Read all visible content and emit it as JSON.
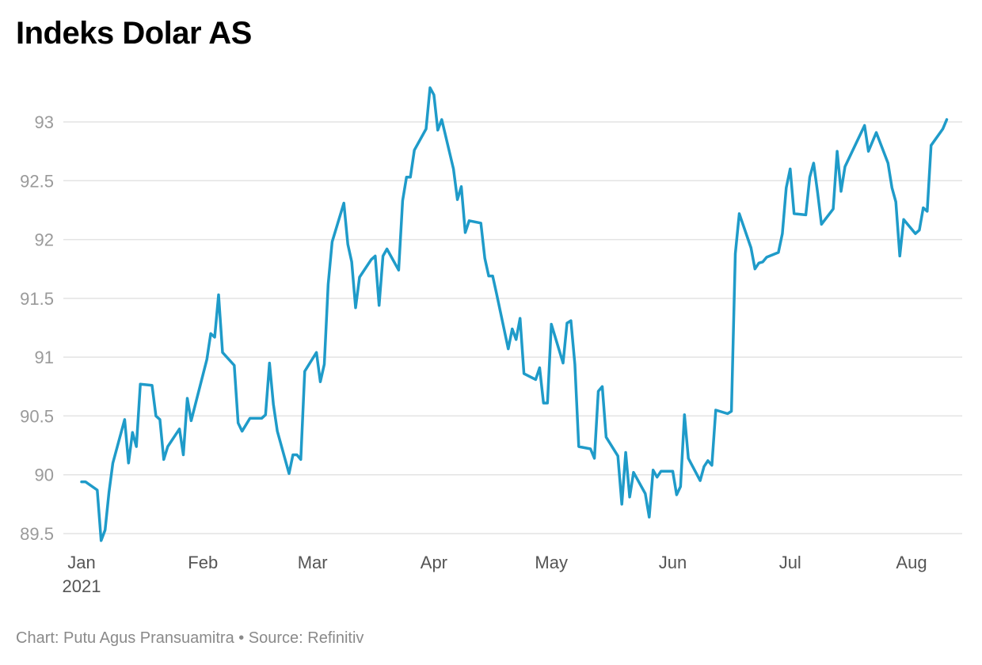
{
  "chart_data": {
    "type": "line",
    "title": "Indeks Dolar AS",
    "series": [
      {
        "name": "Indeks Dolar AS",
        "color": "#1f9bc9",
        "points": [
          [
            "2021-01-01",
            89.94
          ],
          [
            "2021-01-02",
            89.94
          ],
          [
            "2021-01-05",
            89.87
          ],
          [
            "2021-01-06",
            89.44
          ],
          [
            "2021-01-07",
            89.53
          ],
          [
            "2021-01-08",
            89.85
          ],
          [
            "2021-01-09",
            90.1
          ],
          [
            "2021-01-12",
            90.47
          ],
          [
            "2021-01-13",
            90.1
          ],
          [
            "2021-01-14",
            90.36
          ],
          [
            "2021-01-15",
            90.24
          ],
          [
            "2021-01-16",
            90.77
          ],
          [
            "2021-01-19",
            90.76
          ],
          [
            "2021-01-20",
            90.5
          ],
          [
            "2021-01-21",
            90.47
          ],
          [
            "2021-01-22",
            90.13
          ],
          [
            "2021-01-23",
            90.24
          ],
          [
            "2021-01-26",
            90.39
          ],
          [
            "2021-01-27",
            90.17
          ],
          [
            "2021-01-28",
            90.65
          ],
          [
            "2021-01-29",
            90.46
          ],
          [
            "2021-02-02",
            90.98
          ],
          [
            "2021-02-03",
            91.2
          ],
          [
            "2021-02-04",
            91.17
          ],
          [
            "2021-02-05",
            91.53
          ],
          [
            "2021-02-06",
            91.04
          ],
          [
            "2021-02-09",
            90.93
          ],
          [
            "2021-02-10",
            90.44
          ],
          [
            "2021-02-11",
            90.37
          ],
          [
            "2021-02-13",
            90.48
          ],
          [
            "2021-02-16",
            90.48
          ],
          [
            "2021-02-17",
            90.51
          ],
          [
            "2021-02-18",
            90.95
          ],
          [
            "2021-02-19",
            90.6
          ],
          [
            "2021-02-20",
            90.37
          ],
          [
            "2021-02-23",
            90.01
          ],
          [
            "2021-02-24",
            90.17
          ],
          [
            "2021-02-25",
            90.17
          ],
          [
            "2021-02-26",
            90.13
          ],
          [
            "2021-02-27",
            90.88
          ],
          [
            "2021-03-02",
            91.04
          ],
          [
            "2021-03-03",
            90.79
          ],
          [
            "2021-03-04",
            90.94
          ],
          [
            "2021-03-05",
            91.62
          ],
          [
            "2021-03-06",
            91.98
          ],
          [
            "2021-03-09",
            92.31
          ],
          [
            "2021-03-10",
            91.96
          ],
          [
            "2021-03-11",
            91.81
          ],
          [
            "2021-03-12",
            91.42
          ],
          [
            "2021-03-13",
            91.68
          ],
          [
            "2021-03-16",
            91.83
          ],
          [
            "2021-03-17",
            91.86
          ],
          [
            "2021-03-18",
            91.44
          ],
          [
            "2021-03-19",
            91.86
          ],
          [
            "2021-03-20",
            91.92
          ],
          [
            "2021-03-23",
            91.74
          ],
          [
            "2021-03-24",
            92.33
          ],
          [
            "2021-03-25",
            92.53
          ],
          [
            "2021-03-26",
            92.53
          ],
          [
            "2021-03-27",
            92.76
          ],
          [
            "2021-03-30",
            92.94
          ],
          [
            "2021-03-31",
            93.29
          ],
          [
            "2021-04-01",
            93.23
          ],
          [
            "2021-04-02",
            92.93
          ],
          [
            "2021-04-03",
            93.02
          ],
          [
            "2021-04-06",
            92.6
          ],
          [
            "2021-04-07",
            92.34
          ],
          [
            "2021-04-08",
            92.45
          ],
          [
            "2021-04-09",
            92.06
          ],
          [
            "2021-04-10",
            92.16
          ],
          [
            "2021-04-13",
            92.14
          ],
          [
            "2021-04-14",
            91.84
          ],
          [
            "2021-04-15",
            91.69
          ],
          [
            "2021-04-16",
            91.69
          ],
          [
            "2021-04-17",
            91.54
          ],
          [
            "2021-04-20",
            91.07
          ],
          [
            "2021-04-21",
            91.24
          ],
          [
            "2021-04-22",
            91.15
          ],
          [
            "2021-04-23",
            91.33
          ],
          [
            "2021-04-24",
            90.86
          ],
          [
            "2021-04-27",
            90.81
          ],
          [
            "2021-04-28",
            90.91
          ],
          [
            "2021-04-29",
            90.61
          ],
          [
            "2021-04-30",
            90.61
          ],
          [
            "2021-05-01",
            91.28
          ],
          [
            "2021-05-04",
            90.95
          ],
          [
            "2021-05-05",
            91.29
          ],
          [
            "2021-05-06",
            91.31
          ],
          [
            "2021-05-07",
            90.94
          ],
          [
            "2021-05-08",
            90.24
          ],
          [
            "2021-05-11",
            90.22
          ],
          [
            "2021-05-12",
            90.14
          ],
          [
            "2021-05-13",
            90.71
          ],
          [
            "2021-05-14",
            90.75
          ],
          [
            "2021-05-15",
            90.32
          ],
          [
            "2021-05-18",
            90.16
          ],
          [
            "2021-05-19",
            89.75
          ],
          [
            "2021-05-20",
            90.19
          ],
          [
            "2021-05-21",
            89.81
          ],
          [
            "2021-05-22",
            90.02
          ],
          [
            "2021-05-25",
            89.84
          ],
          [
            "2021-05-26",
            89.64
          ],
          [
            "2021-05-27",
            90.04
          ],
          [
            "2021-05-28",
            89.98
          ],
          [
            "2021-05-29",
            90.03
          ],
          [
            "2021-06-01",
            90.03
          ],
          [
            "2021-06-02",
            89.83
          ],
          [
            "2021-06-03",
            89.9
          ],
          [
            "2021-06-04",
            90.51
          ],
          [
            "2021-06-05",
            90.14
          ],
          [
            "2021-06-08",
            89.95
          ],
          [
            "2021-06-09",
            90.07
          ],
          [
            "2021-06-10",
            90.12
          ],
          [
            "2021-06-11",
            90.08
          ],
          [
            "2021-06-12",
            90.55
          ],
          [
            "2021-06-15",
            90.52
          ],
          [
            "2021-06-16",
            90.54
          ],
          [
            "2021-06-17",
            91.88
          ],
          [
            "2021-06-18",
            92.22
          ],
          [
            "2021-06-21",
            91.93
          ],
          [
            "2021-06-22",
            91.75
          ],
          [
            "2021-06-23",
            91.8
          ],
          [
            "2021-06-24",
            91.81
          ],
          [
            "2021-06-25",
            91.85
          ],
          [
            "2021-06-28",
            91.89
          ],
          [
            "2021-06-29",
            92.05
          ],
          [
            "2021-06-30",
            92.44
          ],
          [
            "2021-07-01",
            92.6
          ],
          [
            "2021-07-02",
            92.22
          ],
          [
            "2021-07-05",
            92.21
          ],
          [
            "2021-07-06",
            92.53
          ],
          [
            "2021-07-07",
            92.65
          ],
          [
            "2021-07-08",
            92.4
          ],
          [
            "2021-07-09",
            92.13
          ],
          [
            "2021-07-12",
            92.26
          ],
          [
            "2021-07-13",
            92.75
          ],
          [
            "2021-07-14",
            92.41
          ],
          [
            "2021-07-15",
            92.62
          ],
          [
            "2021-07-20",
            92.97
          ],
          [
            "2021-07-21",
            92.75
          ],
          [
            "2021-07-23",
            92.91
          ],
          [
            "2021-07-26",
            92.65
          ],
          [
            "2021-07-27",
            92.44
          ],
          [
            "2021-07-28",
            92.32
          ],
          [
            "2021-07-29",
            91.86
          ],
          [
            "2021-07-30",
            92.17
          ],
          [
            "2021-08-02",
            92.05
          ],
          [
            "2021-08-03",
            92.08
          ],
          [
            "2021-08-04",
            92.27
          ],
          [
            "2021-08-05",
            92.24
          ],
          [
            "2021-08-06",
            92.8
          ],
          [
            "2021-08-09",
            92.94
          ],
          [
            "2021-08-10",
            93.02
          ]
        ]
      }
    ],
    "x_ticks": [
      {
        "date": "2021-01-01",
        "label": "Jan",
        "sublabel": "2021"
      },
      {
        "date": "2021-02-01",
        "label": "Feb"
      },
      {
        "date": "2021-03-01",
        "label": "Mar"
      },
      {
        "date": "2021-04-01",
        "label": "Apr"
      },
      {
        "date": "2021-05-01",
        "label": "May"
      },
      {
        "date": "2021-06-01",
        "label": "Jun"
      },
      {
        "date": "2021-07-01",
        "label": "Jul"
      },
      {
        "date": "2021-08-01",
        "label": "Aug"
      }
    ],
    "y_ticks": [
      89.5,
      90,
      90.5,
      91,
      91.5,
      92,
      92.5,
      93
    ],
    "y_tick_labels": [
      "89.5",
      "90",
      "90.5",
      "91",
      "91.5",
      "92",
      "92.5",
      "93"
    ],
    "ylim": [
      89.5,
      93.3
    ],
    "xlim": [
      "2021-01-01",
      "2021-08-14"
    ],
    "grid": true,
    "xlabel": "",
    "ylabel": ""
  },
  "footer": {
    "credit": "Chart: Putu Agus Pransuamitra • Source: Refinitiv"
  }
}
